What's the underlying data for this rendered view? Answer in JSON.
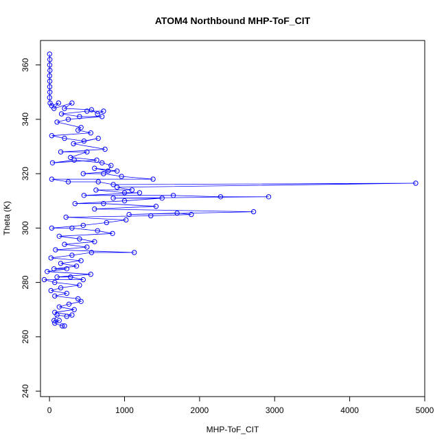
{
  "chart_data": {
    "type": "scatter",
    "title": "ATOM4 Northbound MHP-ToF_CIT",
    "xlabel": "MHP-ToF_CIT",
    "ylabel": "Theta (K)",
    "xlim": [
      -120,
      5000
    ],
    "ylim": [
      238,
      369
    ],
    "xticks": [
      0,
      1000,
      2000,
      3000,
      4000,
      5000
    ],
    "yticks": [
      240,
      260,
      280,
      300,
      320,
      340,
      360
    ],
    "grid": false,
    "legend": "none",
    "color": "#0000ff",
    "series": [
      {
        "points": [
          [
            2,
            364
          ],
          [
            5,
            362
          ],
          [
            3,
            360
          ],
          [
            6,
            358
          ],
          [
            2,
            356
          ],
          [
            4,
            354
          ],
          [
            3,
            352
          ],
          [
            5,
            350
          ],
          [
            2,
            348
          ],
          [
            8,
            346
          ],
          [
            30,
            345
          ],
          [
            120,
            346
          ],
          [
            60,
            344
          ],
          [
            300,
            346
          ],
          [
            200,
            344
          ],
          [
            560,
            343.5
          ],
          [
            640,
            342
          ],
          [
            720,
            343
          ],
          [
            500,
            343
          ],
          [
            160,
            342
          ],
          [
            400,
            341
          ],
          [
            700,
            341
          ],
          [
            250,
            340
          ],
          [
            100,
            339
          ],
          [
            420,
            337
          ],
          [
            380,
            336
          ],
          [
            550,
            335
          ],
          [
            30,
            334
          ],
          [
            200,
            333
          ],
          [
            460,
            332
          ],
          [
            650,
            333
          ],
          [
            320,
            331
          ],
          [
            740,
            329
          ],
          [
            150,
            328
          ],
          [
            500,
            328
          ],
          [
            280,
            326
          ],
          [
            630,
            325
          ],
          [
            40,
            324
          ],
          [
            330,
            325
          ],
          [
            700,
            324
          ],
          [
            820,
            323
          ],
          [
            780,
            321
          ],
          [
            600,
            322
          ],
          [
            900,
            321
          ],
          [
            450,
            320
          ],
          [
            720,
            320
          ],
          [
            960,
            319
          ],
          [
            1380,
            318
          ],
          [
            30,
            318
          ],
          [
            250,
            317
          ],
          [
            650,
            317
          ],
          [
            850,
            316
          ],
          [
            4880,
            316.5
          ],
          [
            900,
            315
          ],
          [
            1100,
            314
          ],
          [
            620,
            314
          ],
          [
            1000,
            313
          ],
          [
            1200,
            313
          ],
          [
            460,
            312
          ],
          [
            1650,
            312
          ],
          [
            2280,
            311.5
          ],
          [
            2920,
            311.5
          ],
          [
            850,
            311
          ],
          [
            1500,
            311
          ],
          [
            1000,
            310
          ],
          [
            340,
            309
          ],
          [
            720,
            309
          ],
          [
            1420,
            308
          ],
          [
            600,
            307
          ],
          [
            2720,
            306
          ],
          [
            1060,
            305
          ],
          [
            1700,
            305.5
          ],
          [
            1890,
            305
          ],
          [
            1350,
            304.5
          ],
          [
            220,
            304
          ],
          [
            1020,
            303
          ],
          [
            760,
            302
          ],
          [
            450,
            301
          ],
          [
            30,
            300
          ],
          [
            300,
            300
          ],
          [
            640,
            299
          ],
          [
            840,
            298
          ],
          [
            130,
            297
          ],
          [
            400,
            296
          ],
          [
            600,
            295
          ],
          [
            200,
            294
          ],
          [
            500,
            293
          ],
          [
            80,
            292
          ],
          [
            1130,
            291
          ],
          [
            560,
            291
          ],
          [
            300,
            290
          ],
          [
            20,
            289
          ],
          [
            420,
            288
          ],
          [
            150,
            287
          ],
          [
            360,
            286
          ],
          [
            60,
            285
          ],
          [
            230,
            285
          ],
          [
            -30,
            284
          ],
          [
            550,
            283
          ],
          [
            100,
            282
          ],
          [
            280,
            282
          ],
          [
            450,
            281
          ],
          [
            -70,
            281
          ],
          [
            70,
            280
          ],
          [
            400,
            279
          ],
          [
            150,
            278
          ],
          [
            20,
            277
          ],
          [
            230,
            276
          ],
          [
            70,
            275
          ],
          [
            380,
            274
          ],
          [
            420,
            273
          ],
          [
            260,
            272
          ],
          [
            130,
            271
          ],
          [
            330,
            270
          ],
          [
            70,
            269
          ],
          [
            300,
            268
          ],
          [
            230,
            267.5
          ],
          [
            100,
            268
          ],
          [
            60,
            266
          ],
          [
            130,
            266
          ],
          [
            70,
            265
          ],
          [
            170,
            264
          ],
          [
            200,
            264
          ]
        ]
      }
    ]
  }
}
